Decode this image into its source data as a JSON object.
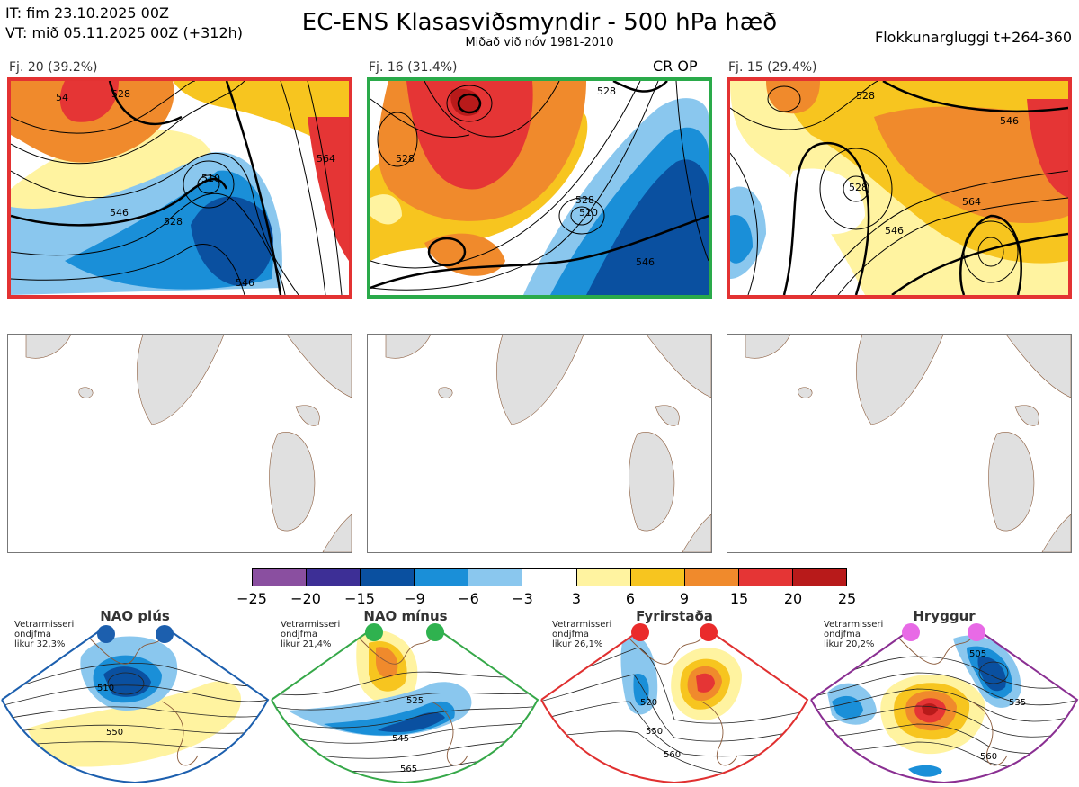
{
  "header": {
    "it": "IT: fim 23.10.2025 00Z",
    "vt": "VT: mið 05.11.2025 00Z  (+312h)",
    "title": "EC-ENS Klasasviðsmyndir - 500 hPa hæð",
    "subtitle": "Miðað við nóv 1981-2010",
    "window": "Flokkunargluggi t+264-360"
  },
  "panels": [
    {
      "label": "Fj. 20 (39.2%)",
      "border_color": "#e33232",
      "contours": [
        "510",
        "528",
        "546",
        "564",
        "54",
        "528"
      ]
    },
    {
      "label": "Fj. 16 (31.4%)",
      "border_color": "#2aaa4a",
      "tag": "CR OP",
      "contours": [
        "510",
        "528",
        "546",
        "528"
      ]
    },
    {
      "label": "Fj. 15 (29.4%)",
      "border_color": "#e33232",
      "contours": [
        "528",
        "546",
        "564",
        "546",
        "528"
      ]
    }
  ],
  "colorbar": {
    "colors": [
      "#8a4fa0",
      "#3d2f96",
      "#0a50a0",
      "#1a8fd8",
      "#8ac7ee",
      "#ffffff",
      "#fff3a0",
      "#f7c51f",
      "#f08a2c",
      "#e53535",
      "#b81a1a"
    ],
    "labels": [
      "−25",
      "−20",
      "−15",
      "−9",
      "−6",
      "−3",
      "3",
      "6",
      "9",
      "15",
      "20",
      "25"
    ]
  },
  "weather_types": [
    {
      "name": "NAO plús",
      "text": [
        "Vetrarmisseri",
        "ondjfma",
        "likur 32,3%"
      ],
      "color": "#1c5fae",
      "dot_color": "#1c5fae",
      "contours": [
        "510",
        "550"
      ]
    },
    {
      "name": "NAO mínus",
      "text": [
        "Vetrarmisseri",
        "ondjfma",
        "likur 21,4%"
      ],
      "color": "#36a849",
      "dot_color": "#2fb24f",
      "contours": [
        "525",
        "545",
        "565"
      ]
    },
    {
      "name": "Fyrirstaða",
      "text": [
        "Vetrarmisseri",
        "ondjfma",
        "likur 26,1%"
      ],
      "color": "#e03030",
      "dot_color": "#ea2b2b",
      "contours": [
        "520",
        "550",
        "560"
      ]
    },
    {
      "name": "Hryggur",
      "text": [
        "Vetrarmisseri",
        "ondjfma",
        "likur 20,2%"
      ],
      "color": "#8a2f92",
      "dot_color": "#e86ae6",
      "contours": [
        "505",
        "535",
        "560"
      ]
    }
  ]
}
